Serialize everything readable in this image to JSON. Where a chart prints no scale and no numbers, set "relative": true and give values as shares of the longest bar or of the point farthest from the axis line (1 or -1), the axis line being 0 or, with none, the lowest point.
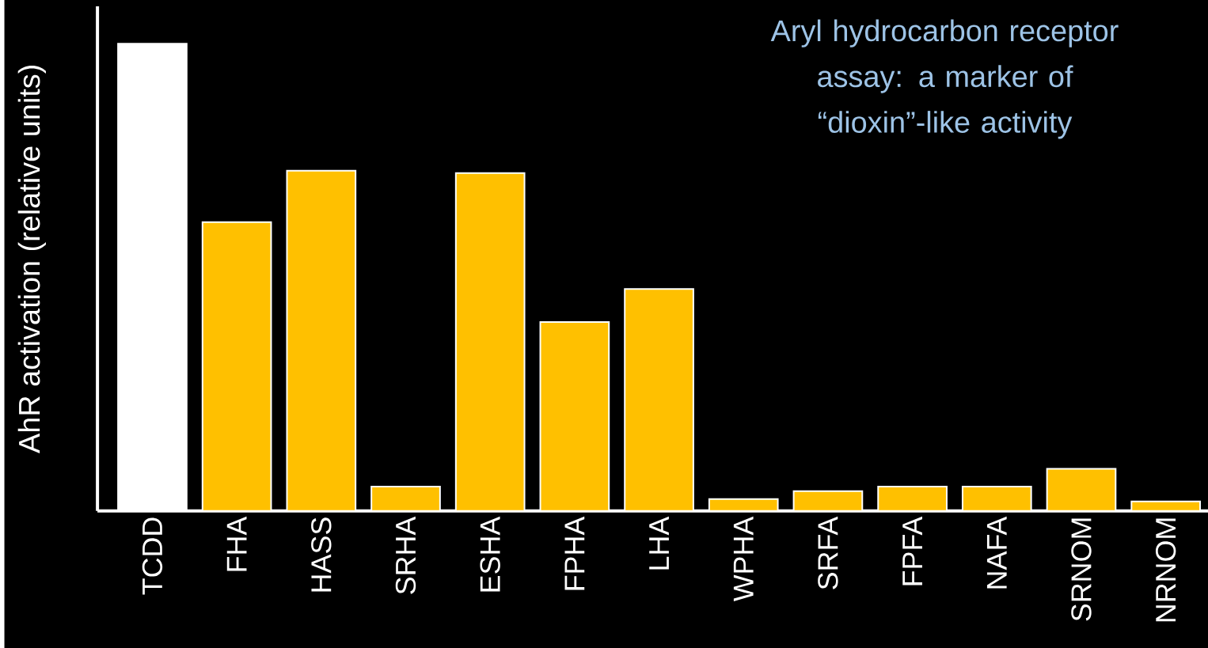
{
  "chart_data": {
    "type": "bar",
    "relative": true,
    "title": "Aryl hydrocarbon receptor assay: a marker of “dioxin”-like activity",
    "ylabel": "AhR activation (relative units)",
    "categories": [
      "TCDD",
      "FHA",
      "HASS",
      "SRHA",
      "ESHA",
      "FPHA",
      "LHA",
      "WPHA",
      "SRFA",
      "FPFA",
      "NAFA",
      "SRNOM",
      "NRNOM"
    ],
    "values": [
      1,
      0.618,
      0.728,
      0.052,
      0.723,
      0.404,
      0.475,
      0.025,
      0.042,
      0.052,
      0.052,
      0.09,
      0.02
    ],
    "colors": [
      "#ffffff",
      "#ffc000",
      "#ffc000",
      "#ffc000",
      "#ffc000",
      "#ffc000",
      "#ffc000",
      "#ffc000",
      "#ffc000",
      "#ffc000",
      "#ffc000",
      "#ffc000",
      "#ffc000"
    ]
  }
}
